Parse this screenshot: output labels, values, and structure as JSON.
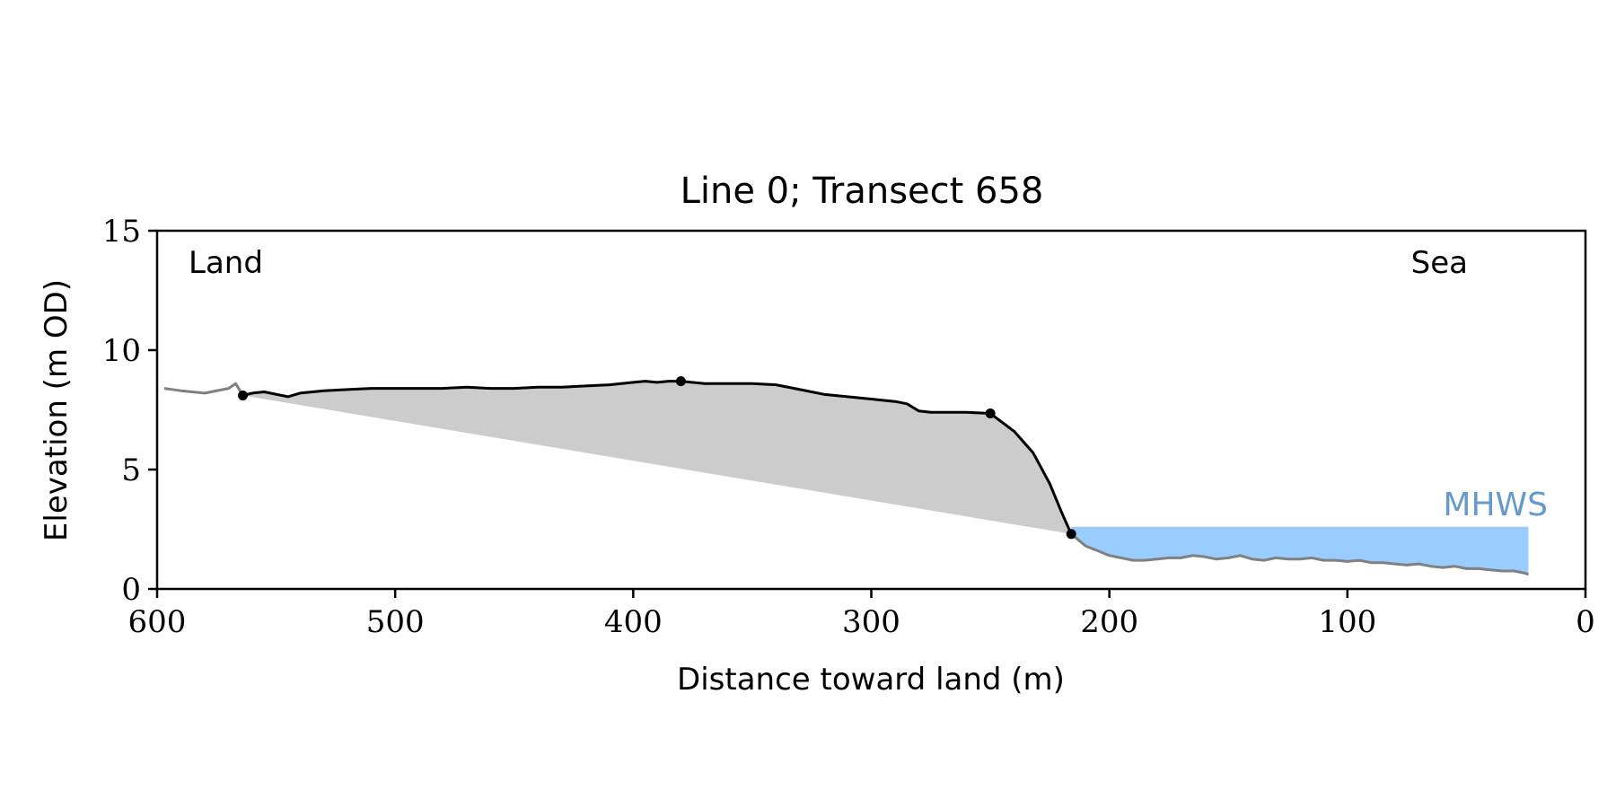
{
  "chart_data": {
    "type": "area",
    "title": "Line 0; Transect 658",
    "xlabel": "Distance toward land (m)",
    "ylabel": "Elevation (m OD)",
    "xlim": [
      600,
      0
    ],
    "ylim": [
      0,
      15
    ],
    "x_ticks": [
      600,
      500,
      400,
      300,
      200,
      100,
      0
    ],
    "y_ticks": [
      0,
      5,
      10,
      15
    ],
    "grid": false,
    "annotations": {
      "land": "Land",
      "sea": "Sea",
      "mhws": "MHWS"
    },
    "mhws_level": 2.6,
    "colors": {
      "profile": "#000000",
      "profile_outside": "#808080",
      "fill": "#cccccc",
      "water": "#99ccff",
      "mhws_label": "#6699cc"
    },
    "profile_outside_landward": {
      "x": [
        597,
        590,
        580,
        570,
        567,
        564
      ],
      "y": [
        8.4,
        8.3,
        8.2,
        8.4,
        8.6,
        8.1
      ]
    },
    "profile": {
      "x": [
        564,
        560,
        555,
        545,
        540,
        530,
        520,
        510,
        500,
        490,
        480,
        470,
        460,
        450,
        440,
        430,
        420,
        410,
        400,
        395,
        390,
        385,
        380,
        370,
        360,
        350,
        340,
        330,
        320,
        310,
        300,
        290,
        285,
        280,
        275,
        270,
        260,
        250,
        240,
        232,
        225,
        220,
        216
      ],
      "y": [
        8.1,
        8.2,
        8.25,
        8.05,
        8.2,
        8.3,
        8.35,
        8.4,
        8.4,
        8.4,
        8.4,
        8.45,
        8.4,
        8.4,
        8.45,
        8.45,
        8.5,
        8.55,
        8.65,
        8.7,
        8.65,
        8.7,
        8.7,
        8.6,
        8.6,
        8.6,
        8.55,
        8.35,
        8.15,
        8.05,
        7.95,
        7.85,
        7.75,
        7.45,
        7.4,
        7.4,
        7.4,
        7.35,
        6.6,
        5.7,
        4.4,
        3.2,
        2.3
      ]
    },
    "profile_outside_seaward": {
      "x": [
        216,
        210,
        205,
        200,
        195,
        190,
        185,
        180,
        175,
        170,
        165,
        160,
        155,
        150,
        145,
        140,
        135,
        130,
        125,
        120,
        115,
        110,
        105,
        100,
        95,
        90,
        85,
        80,
        75,
        70,
        65,
        60,
        55,
        50,
        45,
        40,
        35,
        30,
        25,
        24
      ],
      "y": [
        2.3,
        1.8,
        1.6,
        1.4,
        1.3,
        1.2,
        1.2,
        1.25,
        1.3,
        1.3,
        1.4,
        1.35,
        1.25,
        1.3,
        1.4,
        1.25,
        1.2,
        1.3,
        1.25,
        1.25,
        1.3,
        1.2,
        1.2,
        1.15,
        1.2,
        1.1,
        1.1,
        1.05,
        1.0,
        1.05,
        0.95,
        0.9,
        0.95,
        0.85,
        0.85,
        0.8,
        0.75,
        0.75,
        0.65,
        0.6
      ]
    },
    "toe_line": {
      "x": [
        564,
        216
      ],
      "y": [
        8.1,
        2.3
      ]
    },
    "key_points": [
      {
        "x": 564,
        "y": 8.1
      },
      {
        "x": 380,
        "y": 8.7
      },
      {
        "x": 250,
        "y": 7.35
      },
      {
        "x": 216,
        "y": 2.3
      }
    ],
    "water": {
      "x_start": 216,
      "x_end": 24
    }
  }
}
